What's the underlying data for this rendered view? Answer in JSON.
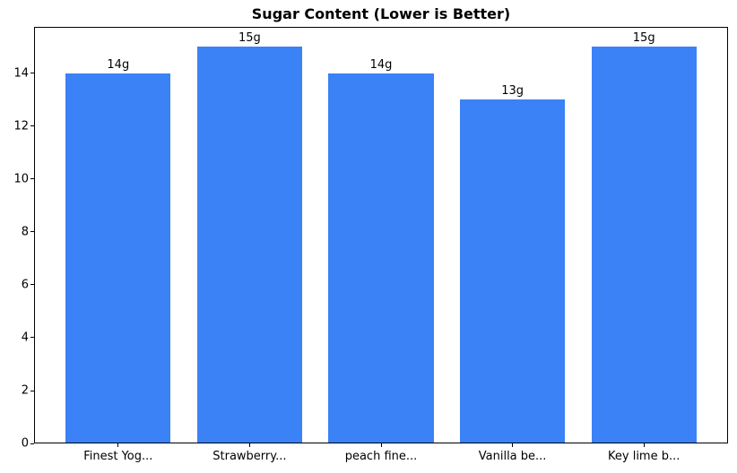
{
  "chart_data": {
    "type": "bar",
    "title": "Sugar Content (Lower is Better)",
    "categories": [
      "Finest Yog...",
      "Strawberry...",
      "peach fine...",
      "Vanilla be...",
      "Key lime b..."
    ],
    "values": [
      14,
      15,
      14,
      13,
      15
    ],
    "value_labels": [
      "14g",
      "15g",
      "14g",
      "13g",
      "15g"
    ],
    "xlabel": "",
    "ylabel": "",
    "ylim": [
      0,
      15.75
    ],
    "yticks": [
      0,
      2,
      4,
      6,
      8,
      10,
      12,
      14
    ],
    "grid": false,
    "legend": "none",
    "colors": {
      "bar": "#3b82f6",
      "axis": "#000000",
      "text": "#000000",
      "background": "#ffffff"
    }
  }
}
